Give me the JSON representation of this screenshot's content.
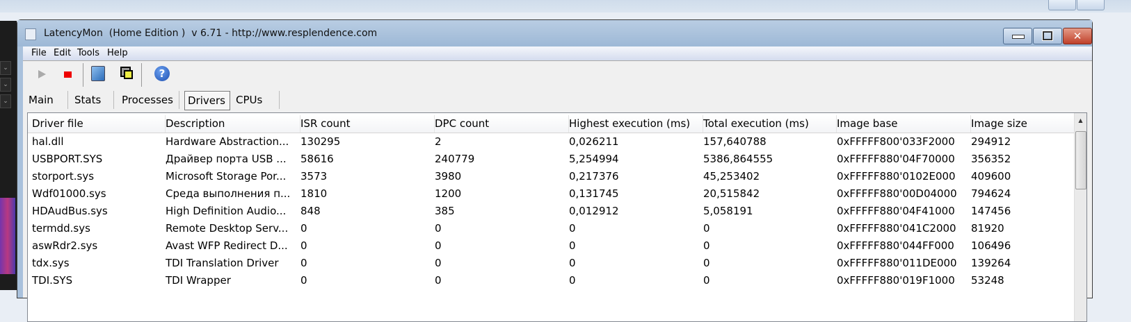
{
  "window": {
    "title": "LatencyMon  (Home Edition )  v 6.71 - http://www.resplendence.com",
    "close_glyph": "✕"
  },
  "menu": [
    "File",
    "Edit",
    "Tools",
    "Help"
  ],
  "toolbar": {
    "icons": [
      "play-icon",
      "stop-icon",
      "monitor-tool-icon",
      "windows-icon",
      "help-icon"
    ],
    "stop_color": "#ee0000"
  },
  "tabs": [
    {
      "label": "Main"
    },
    {
      "label": "Stats"
    },
    {
      "label": "Processes"
    },
    {
      "label": "Drivers",
      "active": true
    },
    {
      "label": "CPUs"
    }
  ],
  "table": {
    "columns": [
      "Driver file",
      "Description",
      "ISR count",
      "DPC count",
      "Highest execution (ms)",
      "Total execution (ms)",
      "Image base",
      "Image size"
    ],
    "rows": [
      [
        "hal.dll",
        "Hardware Abstraction...",
        "130295",
        "2",
        "0,026211",
        "157,640788",
        "0xFFFFF800'033F2000",
        "294912"
      ],
      [
        "USBPORT.SYS",
        "Драйвер порта USB ...",
        "58616",
        "240779",
        "5,254994",
        "5386,864555",
        "0xFFFFF880'04F70000",
        "356352"
      ],
      [
        "storport.sys",
        "Microsoft Storage Por...",
        "3573",
        "3980",
        "0,217376",
        "45,253402",
        "0xFFFFF880'0102E000",
        "409600"
      ],
      [
        "Wdf01000.sys",
        "Среда выполнения п...",
        "1810",
        "1200",
        "0,131745",
        "20,515842",
        "0xFFFFF880'00D04000",
        "794624"
      ],
      [
        "HDAudBus.sys",
        "High Definition Audio...",
        "848",
        "385",
        "0,012912",
        "5,058191",
        "0xFFFFF880'04F41000",
        "147456"
      ],
      [
        "termdd.sys",
        "Remote Desktop Serv...",
        "0",
        "0",
        "0",
        "0",
        "0xFFFFF880'041C2000",
        "81920"
      ],
      [
        "aswRdr2.sys",
        "Avast WFP Redirect D...",
        "0",
        "0",
        "0",
        "0",
        "0xFFFFF880'044FF000",
        "106496"
      ],
      [
        "tdx.sys",
        "TDI Translation Driver",
        "0",
        "0",
        "0",
        "0",
        "0xFFFFF880'011DE000",
        "139264"
      ],
      [
        "TDI.SYS",
        "TDI Wrapper",
        "0",
        "0",
        "0",
        "0",
        "0xFFFFF880'019F1000",
        "53248"
      ]
    ]
  }
}
